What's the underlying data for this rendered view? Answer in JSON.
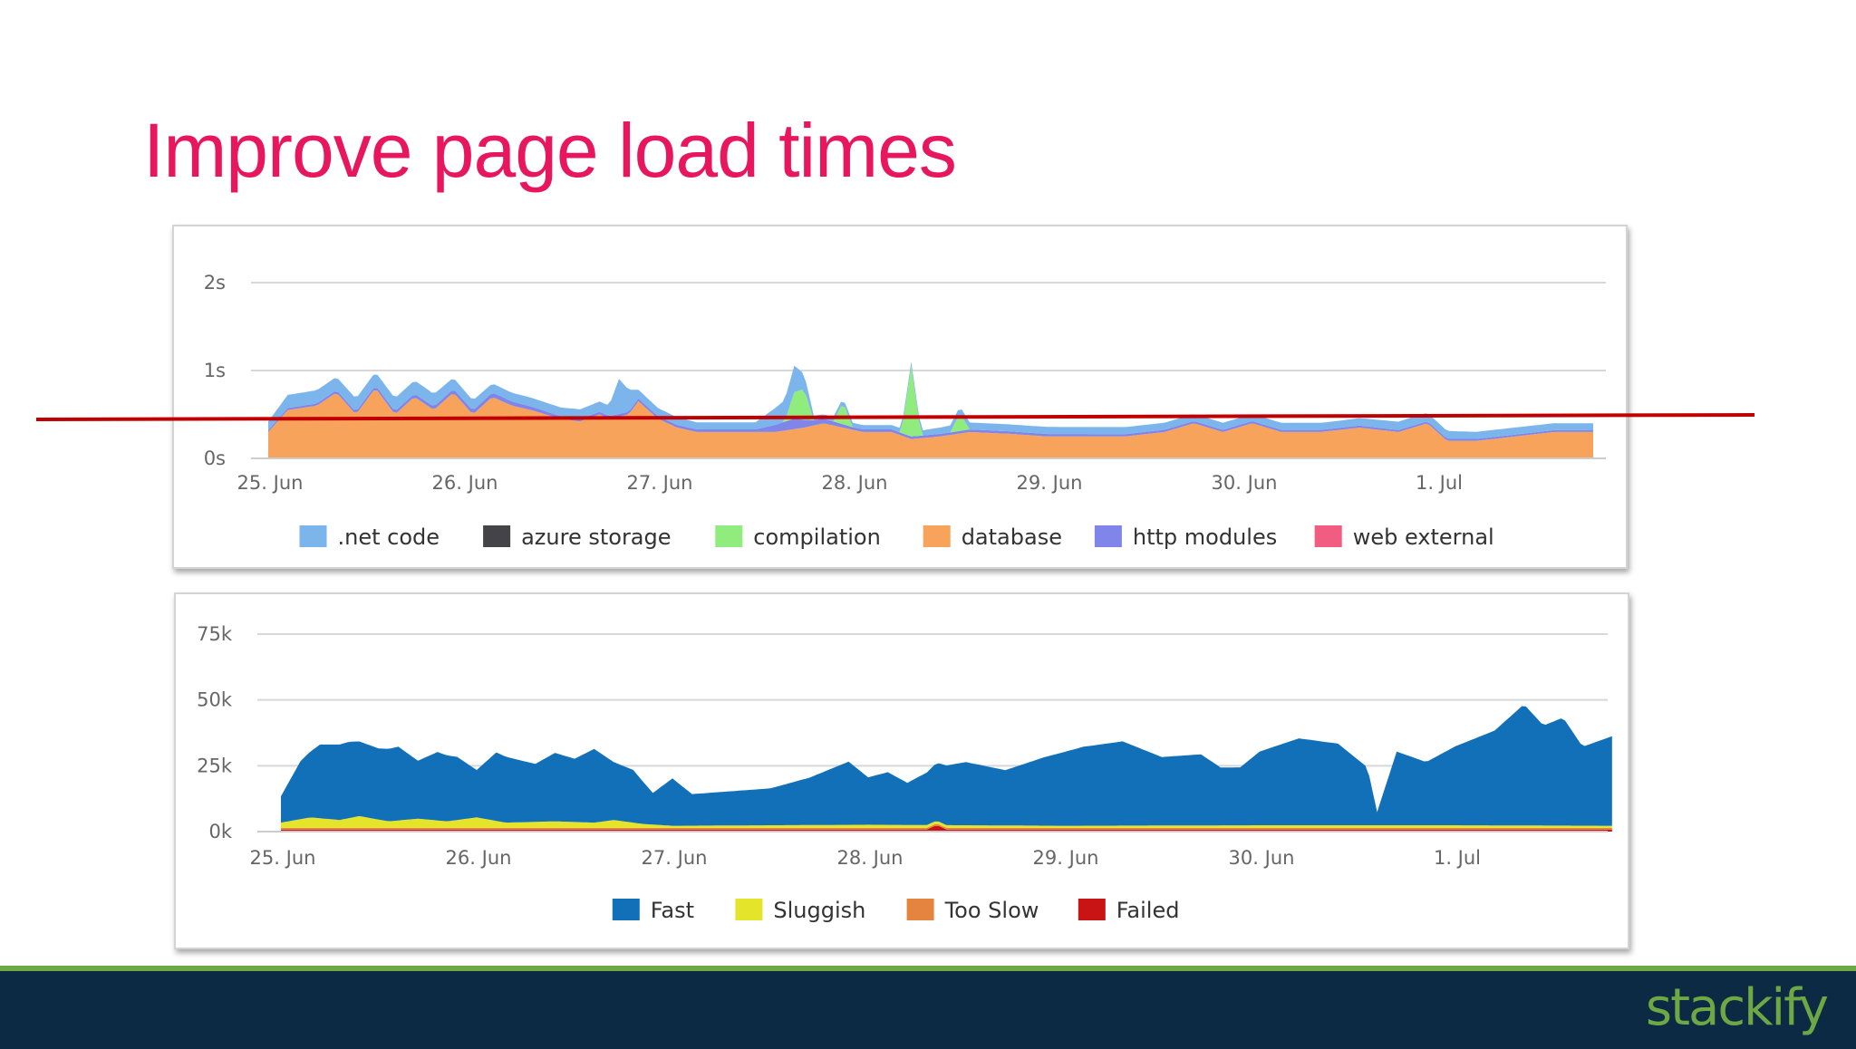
{
  "slide": {
    "title": "Improve page load times",
    "logo_text": "stackify"
  },
  "colors": {
    "title": "#e8175d",
    "net_code": "#7cb5ec",
    "azure_storage": "#434348",
    "compilation": "#90ed7d",
    "database": "#f7a35c",
    "http_modules": "#8085e9",
    "web_external": "#f15c80",
    "fast": "#1170b8",
    "sluggish": "#e4e42a",
    "too_slow": "#e5843f",
    "failed": "#c81414",
    "annotation_line": "#c00000",
    "footer": "#0d2a45",
    "footer_accent": "#6ea844"
  },
  "chart_data": [
    {
      "type": "area",
      "stacked": true,
      "x_categories": [
        "25. Jun",
        "26. Jun",
        "27. Jun",
        "28. Jun",
        "29. Jun",
        "30. Jun",
        "1. Jul"
      ],
      "y_ticks": [
        "0s",
        "1s",
        "2s"
      ],
      "ylim": [
        0,
        2
      ],
      "y_unit": "s",
      "grid": true,
      "legend_position": "bottom",
      "x_start_day": 0,
      "x_end_day": 6.8,
      "legend": [
        ".net code",
        "azure storage",
        "compilation",
        "database",
        "http modules",
        "web external"
      ],
      "series": [
        {
          "name": "database",
          "points": [
            [
              0,
              0.3
            ],
            [
              0.1,
              0.55
            ],
            [
              0.25,
              0.6
            ],
            [
              0.35,
              0.75
            ],
            [
              0.45,
              0.5
            ],
            [
              0.55,
              0.8
            ],
            [
              0.65,
              0.5
            ],
            [
              0.75,
              0.7
            ],
            [
              0.85,
              0.55
            ],
            [
              0.95,
              0.75
            ],
            [
              1.05,
              0.5
            ],
            [
              1.15,
              0.7
            ],
            [
              1.25,
              0.6
            ],
            [
              1.35,
              0.55
            ],
            [
              1.5,
              0.45
            ],
            [
              1.6,
              0.42
            ],
            [
              1.7,
              0.5
            ],
            [
              1.75,
              0.45
            ],
            [
              1.85,
              0.5
            ],
            [
              1.9,
              0.65
            ],
            [
              2.0,
              0.45
            ],
            [
              2.1,
              0.35
            ],
            [
              2.2,
              0.3
            ],
            [
              2.4,
              0.3
            ],
            [
              2.6,
              0.3
            ],
            [
              2.75,
              0.35
            ],
            [
              2.85,
              0.4
            ],
            [
              2.95,
              0.35
            ],
            [
              3.05,
              0.3
            ],
            [
              3.2,
              0.3
            ],
            [
              3.3,
              0.22
            ],
            [
              3.45,
              0.25
            ],
            [
              3.6,
              0.3
            ],
            [
              3.8,
              0.28
            ],
            [
              4.0,
              0.25
            ],
            [
              4.2,
              0.25
            ],
            [
              4.4,
              0.25
            ],
            [
              4.6,
              0.3
            ],
            [
              4.75,
              0.4
            ],
            [
              4.9,
              0.3
            ],
            [
              5.05,
              0.4
            ],
            [
              5.2,
              0.3
            ],
            [
              5.4,
              0.3
            ],
            [
              5.6,
              0.35
            ],
            [
              5.8,
              0.3
            ],
            [
              5.95,
              0.4
            ],
            [
              6.05,
              0.2
            ],
            [
              6.2,
              0.2
            ],
            [
              6.4,
              0.25
            ],
            [
              6.6,
              0.3
            ],
            [
              6.8,
              0.3
            ]
          ]
        },
        {
          "name": "http modules",
          "points": [
            [
              0,
              0.02
            ],
            [
              0.9,
              0.04
            ],
            [
              1.2,
              0.05
            ],
            [
              1.5,
              0.03
            ],
            [
              2.5,
              0.03
            ],
            [
              2.6,
              0.08
            ],
            [
              2.7,
              0.12
            ],
            [
              2.8,
              0.06
            ],
            [
              3.0,
              0.03
            ],
            [
              6.8,
              0.02
            ]
          ]
        },
        {
          "name": "compilation",
          "points": [
            [
              0,
              0
            ],
            [
              2.65,
              0
            ],
            [
              2.7,
              0.3
            ],
            [
              2.75,
              0.35
            ],
            [
              2.8,
              0
            ],
            [
              2.9,
              0
            ],
            [
              2.95,
              0.25
            ],
            [
              3.0,
              0
            ],
            [
              3.25,
              0
            ],
            [
              3.3,
              0.8
            ],
            [
              3.35,
              0
            ],
            [
              3.5,
              0
            ],
            [
              3.55,
              0.2
            ],
            [
              3.6,
              0
            ],
            [
              6.8,
              0
            ]
          ]
        },
        {
          "name": ".net code",
          "points": [
            [
              0,
              0.1
            ],
            [
              0.1,
              0.15
            ],
            [
              0.3,
              0.15
            ],
            [
              0.5,
              0.15
            ],
            [
              0.8,
              0.15
            ],
            [
              1.0,
              0.12
            ],
            [
              1.2,
              0.1
            ],
            [
              1.5,
              0.1
            ],
            [
              1.75,
              0.12
            ],
            [
              1.8,
              0.4
            ],
            [
              1.9,
              0.1
            ],
            [
              2.2,
              0.08
            ],
            [
              2.5,
              0.08
            ],
            [
              2.7,
              0.3
            ],
            [
              2.8,
              0.05
            ],
            [
              3.0,
              0.05
            ],
            [
              3.3,
              0.05
            ],
            [
              3.5,
              0.08
            ],
            [
              4.0,
              0.08
            ],
            [
              4.5,
              0.08
            ],
            [
              5.0,
              0.08
            ],
            [
              5.5,
              0.08
            ],
            [
              5.9,
              0.1
            ],
            [
              6.2,
              0.08
            ],
            [
              6.5,
              0.08
            ],
            [
              6.8,
              0.08
            ]
          ]
        }
      ]
    },
    {
      "type": "area",
      "stacked": true,
      "x_categories": [
        "25. Jun",
        "26. Jun",
        "27. Jun",
        "28. Jun",
        "29. Jun",
        "30. Jun",
        "1. Jul"
      ],
      "y_ticks": [
        "0k",
        "25k",
        "50k",
        "75k"
      ],
      "ylim": [
        0,
        75000
      ],
      "grid": true,
      "legend_position": "bottom",
      "x_start_day": 0,
      "x_end_day": 6.8,
      "legend": [
        "Fast",
        "Sluggish",
        "Too Slow",
        "Failed"
      ],
      "series": [
        {
          "name": "Failed",
          "points": [
            [
              0,
              800
            ],
            [
              3.3,
              800
            ],
            [
              3.35,
              2500
            ],
            [
              3.4,
              800
            ],
            [
              6.8,
              800
            ]
          ]
        },
        {
          "name": "Too Slow",
          "points": [
            [
              0,
              600
            ],
            [
              6.8,
              600
            ]
          ]
        },
        {
          "name": "Sluggish",
          "points": [
            [
              0,
              2000
            ],
            [
              0.15,
              4000
            ],
            [
              0.3,
              3000
            ],
            [
              0.4,
              4500
            ],
            [
              0.55,
              2500
            ],
            [
              0.7,
              3500
            ],
            [
              0.85,
              2500
            ],
            [
              1.0,
              4000
            ],
            [
              1.15,
              2000
            ],
            [
              1.4,
              2500
            ],
            [
              1.6,
              2000
            ],
            [
              1.7,
              3000
            ],
            [
              1.85,
              1500
            ],
            [
              2.0,
              800
            ],
            [
              3.0,
              1200
            ],
            [
              4.0,
              800
            ],
            [
              5.0,
              1000
            ],
            [
              6.0,
              1000
            ],
            [
              6.8,
              800
            ]
          ]
        },
        {
          "name": "Fast",
          "points": [
            [
              0,
              10000
            ],
            [
              0.1,
              22000
            ],
            [
              0.2,
              28000
            ],
            [
              0.35,
              29000
            ],
            [
              0.5,
              27000
            ],
            [
              0.6,
              28000
            ],
            [
              0.7,
              22000
            ],
            [
              0.8,
              26000
            ],
            [
              0.9,
              24000
            ],
            [
              1.0,
              18000
            ],
            [
              1.1,
              26000
            ],
            [
              1.2,
              24000
            ],
            [
              1.3,
              22000
            ],
            [
              1.4,
              26000
            ],
            [
              1.5,
              24000
            ],
            [
              1.6,
              28000
            ],
            [
              1.7,
              22000
            ],
            [
              1.8,
              20000
            ],
            [
              1.9,
              12000
            ],
            [
              2.0,
              18000
            ],
            [
              2.1,
              12000
            ],
            [
              2.3,
              13000
            ],
            [
              2.5,
              14000
            ],
            [
              2.7,
              18000
            ],
            [
              2.9,
              24000
            ],
            [
              3.0,
              18000
            ],
            [
              3.1,
              20000
            ],
            [
              3.2,
              16000
            ],
            [
              3.35,
              22000
            ],
            [
              3.5,
              24000
            ],
            [
              3.7,
              21000
            ],
            [
              3.9,
              26000
            ],
            [
              4.1,
              30000
            ],
            [
              4.3,
              32000
            ],
            [
              4.5,
              26000
            ],
            [
              4.7,
              27000
            ],
            [
              4.8,
              22000
            ],
            [
              4.9,
              22000
            ],
            [
              5.0,
              28000
            ],
            [
              5.2,
              33000
            ],
            [
              5.4,
              31000
            ],
            [
              5.55,
              22000
            ],
            [
              5.6,
              5000
            ],
            [
              5.7,
              28000
            ],
            [
              5.85,
              24000
            ],
            [
              6.0,
              30000
            ],
            [
              6.2,
              36000
            ],
            [
              6.35,
              46000
            ],
            [
              6.45,
              38000
            ],
            [
              6.55,
              41000
            ],
            [
              6.65,
              30000
            ],
            [
              6.8,
              34000
            ]
          ]
        }
      ]
    }
  ]
}
